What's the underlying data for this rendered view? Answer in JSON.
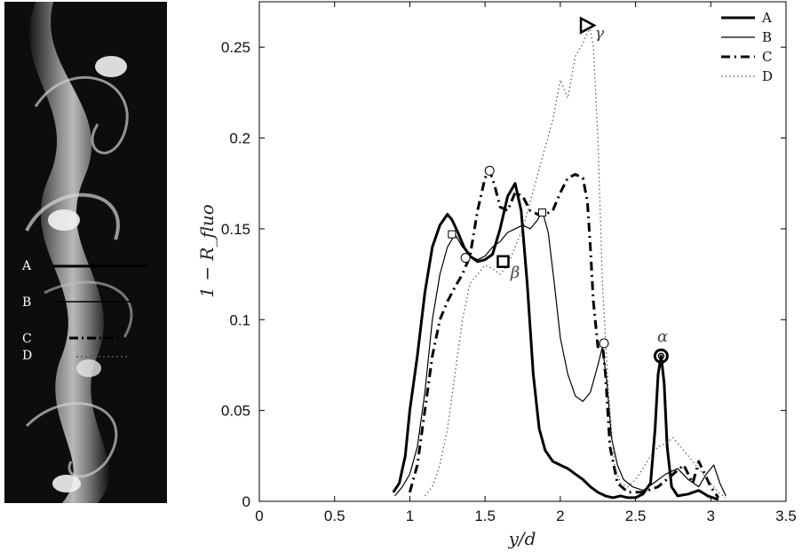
{
  "photo": {
    "labels": [
      "A",
      "B",
      "C",
      "D"
    ]
  },
  "chart_data": {
    "type": "line",
    "title": "",
    "xlabel": "y/d",
    "ylabel": "1 − R_fluo",
    "xlim": [
      0,
      3.5
    ],
    "ylim": [
      0,
      0.275
    ],
    "xticks": [
      "0",
      "0.5",
      "1",
      "1.5",
      "2",
      "2.5",
      "3",
      "3.5"
    ],
    "yticks": [
      "0",
      "0.05",
      "0.1",
      "0.15",
      "0.2",
      "0.25"
    ],
    "legend": "top-right",
    "series": [
      {
        "name": "A",
        "style": "solid-thick",
        "x": [
          0.89,
          0.93,
          0.97,
          1.0,
          1.05,
          1.1,
          1.15,
          1.2,
          1.25,
          1.28,
          1.32,
          1.36,
          1.4,
          1.45,
          1.5,
          1.55,
          1.6,
          1.65,
          1.7,
          1.74,
          1.78,
          1.82,
          1.86,
          1.9,
          1.95,
          2.0,
          2.05,
          2.1,
          2.15,
          2.2,
          2.25,
          2.3,
          2.35,
          2.4,
          2.45,
          2.5,
          2.55,
          2.6,
          2.63,
          2.65,
          2.67,
          2.69,
          2.71,
          2.74,
          2.78,
          2.85,
          2.92,
          2.98,
          3.05
        ],
        "y": [
          0.005,
          0.01,
          0.025,
          0.05,
          0.08,
          0.115,
          0.14,
          0.152,
          0.158,
          0.155,
          0.148,
          0.14,
          0.135,
          0.132,
          0.133,
          0.136,
          0.15,
          0.168,
          0.175,
          0.16,
          0.12,
          0.07,
          0.04,
          0.028,
          0.022,
          0.02,
          0.018,
          0.015,
          0.012,
          0.008,
          0.005,
          0.003,
          0.002,
          0.003,
          0.002,
          0.002,
          0.004,
          0.01,
          0.04,
          0.07,
          0.08,
          0.065,
          0.03,
          0.008,
          0.003,
          0.004,
          0.006,
          0.003,
          0.001
        ],
        "markers": [
          {
            "x": 1.28,
            "y": 0.147,
            "shape": "square-small"
          },
          {
            "x": 1.62,
            "y": 0.132,
            "shape": "square"
          },
          {
            "x": 2.67,
            "y": 0.08,
            "shape": "circle"
          }
        ]
      },
      {
        "name": "B",
        "style": "solid-thin",
        "x": [
          0.9,
          0.95,
          1.0,
          1.05,
          1.1,
          1.15,
          1.2,
          1.25,
          1.3,
          1.35,
          1.4,
          1.45,
          1.5,
          1.55,
          1.6,
          1.65,
          1.7,
          1.75,
          1.8,
          1.85,
          1.88,
          1.92,
          1.96,
          2.0,
          2.05,
          2.1,
          2.15,
          2.2,
          2.25,
          2.28,
          2.31,
          2.34,
          2.38,
          2.42,
          2.48,
          2.55,
          2.62,
          2.7,
          2.78,
          2.85,
          2.92,
          2.97,
          3.02,
          3.06,
          3.1
        ],
        "y": [
          0.003,
          0.008,
          0.015,
          0.03,
          0.06,
          0.1,
          0.125,
          0.14,
          0.147,
          0.14,
          0.135,
          0.133,
          0.135,
          0.14,
          0.143,
          0.148,
          0.15,
          0.152,
          0.15,
          0.155,
          0.16,
          0.148,
          0.12,
          0.09,
          0.07,
          0.058,
          0.055,
          0.06,
          0.075,
          0.085,
          0.065,
          0.035,
          0.02,
          0.012,
          0.008,
          0.006,
          0.01,
          0.015,
          0.018,
          0.012,
          0.008,
          0.015,
          0.02,
          0.01,
          0.003
        ]
      },
      {
        "name": "C",
        "style": "dash-dot",
        "x": [
          1.0,
          1.05,
          1.1,
          1.15,
          1.2,
          1.25,
          1.3,
          1.35,
          1.4,
          1.45,
          1.5,
          1.53,
          1.56,
          1.6,
          1.65,
          1.7,
          1.75,
          1.8,
          1.85,
          1.9,
          1.95,
          2.0,
          2.05,
          2.1,
          2.15,
          2.18,
          2.2,
          2.22,
          2.25,
          2.28,
          2.3,
          2.33,
          2.38,
          2.45,
          2.55,
          2.65,
          2.75,
          2.82,
          2.88,
          2.92,
          2.96,
          3.0,
          3.05
        ],
        "y": [
          0.005,
          0.02,
          0.05,
          0.08,
          0.1,
          0.11,
          0.118,
          0.125,
          0.135,
          0.16,
          0.178,
          0.182,
          0.175,
          0.162,
          0.16,
          0.17,
          0.168,
          0.16,
          0.158,
          0.158,
          0.16,
          0.17,
          0.178,
          0.18,
          0.178,
          0.165,
          0.14,
          0.11,
          0.085,
          0.087,
          0.07,
          0.03,
          0.01,
          0.005,
          0.005,
          0.008,
          0.015,
          0.02,
          0.01,
          0.022,
          0.015,
          0.008,
          0.002
        ]
      },
      {
        "name": "D",
        "style": "dotted",
        "x": [
          1.1,
          1.15,
          1.2,
          1.25,
          1.3,
          1.35,
          1.4,
          1.45,
          1.5,
          1.55,
          1.6,
          1.65,
          1.7,
          1.75,
          1.8,
          1.85,
          1.9,
          1.95,
          2.0,
          2.05,
          2.1,
          2.15,
          2.18,
          2.2,
          2.22,
          2.25,
          2.28,
          2.32,
          2.36,
          2.4,
          2.45,
          2.5,
          2.55,
          2.6,
          2.65,
          2.7,
          2.75,
          2.8,
          2.85,
          2.9,
          2.95,
          3.0,
          3.05,
          3.1
        ],
        "y": [
          0.003,
          0.008,
          0.02,
          0.04,
          0.07,
          0.1,
          0.12,
          0.125,
          0.13,
          0.128,
          0.125,
          0.13,
          0.14,
          0.15,
          0.165,
          0.18,
          0.195,
          0.21,
          0.232,
          0.222,
          0.245,
          0.252,
          0.258,
          0.26,
          0.25,
          0.2,
          0.12,
          0.06,
          0.02,
          0.01,
          0.008,
          0.012,
          0.018,
          0.025,
          0.03,
          0.032,
          0.035,
          0.03,
          0.025,
          0.02,
          0.015,
          0.01,
          0.005,
          0.002
        ],
        "markers": [
          {
            "x": 1.53,
            "y": 0.182,
            "shape": "circle-small"
          },
          {
            "x": 1.37,
            "y": 0.134,
            "shape": "circle-small"
          },
          {
            "x": 1.88,
            "y": 0.159,
            "shape": "square-small"
          },
          {
            "x": 2.29,
            "y": 0.087,
            "shape": "circle-small"
          },
          {
            "x": 2.19,
            "y": 0.262,
            "shape": "triangle"
          }
        ]
      }
    ],
    "annotations": [
      {
        "text": "α",
        "x": 2.68,
        "y": 0.088
      },
      {
        "text": "β",
        "x": 1.7,
        "y": 0.123
      },
      {
        "text": "γ",
        "x": 2.26,
        "y": 0.255
      }
    ]
  }
}
